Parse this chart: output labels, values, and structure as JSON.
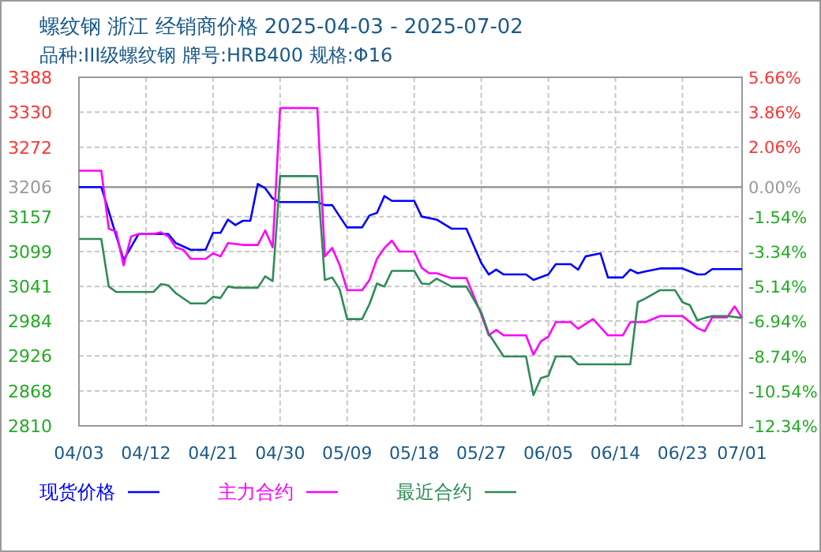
{
  "chart_data": {
    "type": "line",
    "title": "螺纹钢 浙江 经销商价格 2025-04-03 - 2025-07-02",
    "subtitle": "品种:III级螺纹钢 牌号:HRB400 规格:Φ16",
    "xlim": [
      "2025-04-03",
      "2025-07-01"
    ],
    "xticks": [
      {
        "value": "2025-04-03",
        "label": "04/03"
      },
      {
        "value": "2025-04-12",
        "label": "04/12"
      },
      {
        "value": "2025-04-21",
        "label": "04/21"
      },
      {
        "value": "2025-04-30",
        "label": "04/30"
      },
      {
        "value": "2025-05-09",
        "label": "05/09"
      },
      {
        "value": "2025-05-18",
        "label": "05/18"
      },
      {
        "value": "2025-05-27",
        "label": "05/27"
      },
      {
        "value": "2025-06-05",
        "label": "06/05"
      },
      {
        "value": "2025-06-14",
        "label": "06/14"
      },
      {
        "value": "2025-06-23",
        "label": "06/23"
      },
      {
        "value": "2025-07-01",
        "label": "07/01"
      }
    ],
    "ylim": [
      2810,
      3388
    ],
    "yticks": [
      2810,
      2868,
      2926,
      2984,
      3041,
      3099,
      3157,
      3206,
      3272,
      3330,
      3388
    ],
    "y2lim": [
      -12.34,
      5.66
    ],
    "y2ticks": [
      {
        "value": -12.34,
        "label": "-12.34%"
      },
      {
        "value": -10.54,
        "label": "-10.54%"
      },
      {
        "value": -8.74,
        "label": "-8.74%"
      },
      {
        "value": -6.94,
        "label": "-6.94%"
      },
      {
        "value": -5.14,
        "label": "-5.14%"
      },
      {
        "value": -3.34,
        "label": "-3.34%"
      },
      {
        "value": -1.54,
        "label": "-1.54%"
      },
      {
        "value": 0,
        "label": "0.00%"
      },
      {
        "value": 2.06,
        "label": "2.06%"
      },
      {
        "value": 3.86,
        "label": "3.86%"
      },
      {
        "value": 5.66,
        "label": "5.66%"
      }
    ],
    "ref_lines": [
      {
        "axis": "y",
        "value": 3206,
        "color": "#999999"
      }
    ],
    "grid": true,
    "legend": "bottom",
    "series": [
      {
        "name": "现货价格",
        "color": "#0000ff",
        "x": [
          "2025-04-03",
          "2025-04-06",
          "2025-04-09",
          "2025-04-11",
          "2025-04-15",
          "2025-04-16",
          "2025-04-18",
          "2025-04-20",
          "2025-04-21",
          "2025-04-22",
          "2025-04-23",
          "2025-04-24",
          "2025-04-25",
          "2025-04-26",
          "2025-04-27",
          "2025-04-28",
          "2025-04-29",
          "2025-04-30",
          "2025-05-05",
          "2025-05-06",
          "2025-05-07",
          "2025-05-08",
          "2025-05-09",
          "2025-05-11",
          "2025-05-12",
          "2025-05-13",
          "2025-05-14",
          "2025-05-15",
          "2025-05-18",
          "2025-05-19",
          "2025-05-21",
          "2025-05-23",
          "2025-05-25",
          "2025-05-27",
          "2025-05-28",
          "2025-05-29",
          "2025-05-30",
          "2025-06-02",
          "2025-06-03",
          "2025-06-05",
          "2025-06-06",
          "2025-06-08",
          "2025-06-09",
          "2025-06-10",
          "2025-06-12",
          "2025-06-13",
          "2025-06-15",
          "2025-06-16",
          "2025-06-17",
          "2025-06-18",
          "2025-06-20",
          "2025-06-23",
          "2025-06-25",
          "2025-06-26",
          "2025-06-27",
          "2025-07-01"
        ],
        "values": [
          3206,
          3206,
          3085,
          3128,
          3128,
          3113,
          3102,
          3102,
          3130,
          3130,
          3152,
          3143,
          3150,
          3150,
          3211,
          3204,
          3187,
          3181,
          3181,
          3176,
          3176,
          3157,
          3139,
          3139,
          3159,
          3163,
          3191,
          3183,
          3183,
          3157,
          3152,
          3137,
          3137,
          3080,
          3061,
          3069,
          3061,
          3061,
          3052,
          3061,
          3078,
          3078,
          3069,
          3091,
          3096,
          3056,
          3056,
          3069,
          3063,
          3066,
          3071,
          3071,
          3061,
          3061,
          3070,
          3070
        ]
      },
      {
        "name": "主力合约",
        "color": "#ff00ff",
        "x": [
          "2025-04-03",
          "2025-04-06",
          "2025-04-07",
          "2025-04-08",
          "2025-04-09",
          "2025-04-10",
          "2025-04-11",
          "2025-04-13",
          "2025-04-14",
          "2025-04-15",
          "2025-04-16",
          "2025-04-17",
          "2025-04-18",
          "2025-04-20",
          "2025-04-21",
          "2025-04-22",
          "2025-04-23",
          "2025-04-25",
          "2025-04-27",
          "2025-04-28",
          "2025-04-29",
          "2025-04-30",
          "2025-05-05",
          "2025-05-06",
          "2025-05-07",
          "2025-05-08",
          "2025-05-09",
          "2025-05-11",
          "2025-05-12",
          "2025-05-13",
          "2025-05-14",
          "2025-05-15",
          "2025-05-16",
          "2025-05-18",
          "2025-05-19",
          "2025-05-20",
          "2025-05-21",
          "2025-05-23",
          "2025-05-25",
          "2025-05-27",
          "2025-05-28",
          "2025-05-29",
          "2025-05-30",
          "2025-06-02",
          "2025-06-03",
          "2025-06-04",
          "2025-06-05",
          "2025-06-06",
          "2025-06-08",
          "2025-06-09",
          "2025-06-11",
          "2025-06-13",
          "2025-06-15",
          "2025-06-16",
          "2025-06-18",
          "2025-06-20",
          "2025-06-23",
          "2025-06-25",
          "2025-06-26",
          "2025-06-27",
          "2025-06-29",
          "2025-06-30",
          "2025-07-01"
        ],
        "values": [
          3233,
          3233,
          3137,
          3132,
          3076,
          3124,
          3128,
          3128,
          3131,
          3124,
          3106,
          3102,
          3087,
          3087,
          3096,
          3091,
          3113,
          3110,
          3110,
          3134,
          3106,
          3337,
          3337,
          3091,
          3105,
          3076,
          3035,
          3035,
          3052,
          3087,
          3105,
          3117,
          3099,
          3099,
          3072,
          3063,
          3063,
          3055,
          3055,
          2995,
          2960,
          2969,
          2960,
          2960,
          2928,
          2950,
          2958,
          2982,
          2982,
          2971,
          2987,
          2960,
          2960,
          2982,
          2982,
          2992,
          2992,
          2972,
          2967,
          2990,
          2990,
          3008,
          2989
        ]
      },
      {
        "name": "最近合约",
        "color": "#2e8b57",
        "x": [
          "2025-04-03",
          "2025-04-06",
          "2025-04-07",
          "2025-04-08",
          "2025-04-13",
          "2025-04-14",
          "2025-04-15",
          "2025-04-16",
          "2025-04-18",
          "2025-04-20",
          "2025-04-21",
          "2025-04-22",
          "2025-04-23",
          "2025-04-24",
          "2025-04-27",
          "2025-04-28",
          "2025-04-29",
          "2025-04-30",
          "2025-05-05",
          "2025-05-06",
          "2025-05-07",
          "2025-05-08",
          "2025-05-09",
          "2025-05-11",
          "2025-05-12",
          "2025-05-13",
          "2025-05-14",
          "2025-05-15",
          "2025-05-18",
          "2025-05-19",
          "2025-05-20",
          "2025-05-21",
          "2025-05-23",
          "2025-05-25",
          "2025-05-27",
          "2025-05-28",
          "2025-05-30",
          "2025-06-02",
          "2025-06-03",
          "2025-06-04",
          "2025-06-05",
          "2025-06-06",
          "2025-06-08",
          "2025-06-09",
          "2025-06-16",
          "2025-06-17",
          "2025-06-18",
          "2025-06-20",
          "2025-06-22",
          "2025-06-23",
          "2025-06-24",
          "2025-06-25",
          "2025-06-26",
          "2025-06-27",
          "2025-06-29",
          "2025-07-01"
        ],
        "values": [
          3120,
          3120,
          3041,
          3032,
          3032,
          3045,
          3043,
          3030,
          3013,
          3013,
          3024,
          3022,
          3041,
          3039,
          3039,
          3058,
          3050,
          3224,
          3224,
          3052,
          3056,
          3036,
          2987,
          2987,
          3012,
          3046,
          3041,
          3067,
          3067,
          3046,
          3045,
          3054,
          3041,
          3041,
          2998,
          2963,
          2925,
          2925,
          2861,
          2889,
          2893,
          2925,
          2925,
          2912,
          2912,
          3015,
          3021,
          3035,
          3035,
          3015,
          3010,
          2985,
          2989,
          2992,
          2992,
          2989
        ]
      }
    ]
  }
}
